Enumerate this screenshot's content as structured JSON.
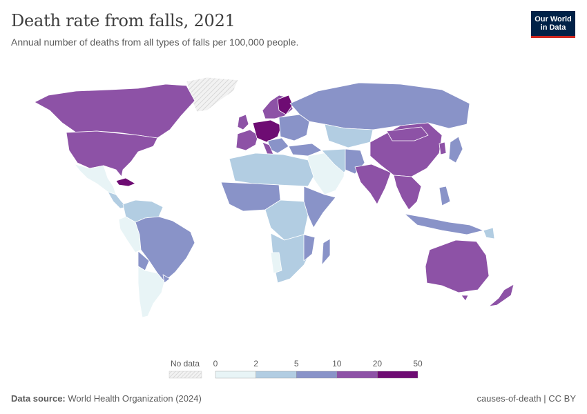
{
  "header": {
    "title": "Death rate from falls, 2021",
    "subtitle": "Annual number of deaths from all types of falls per 100,000 people.",
    "logo_line1": "Our World",
    "logo_line2": "in Data"
  },
  "legend": {
    "no_data_label": "No data",
    "ticks": [
      "0",
      "2",
      "5",
      "10",
      "20",
      "50"
    ],
    "colors": [
      "#e8f4f6",
      "#b2cde2",
      "#8993c8",
      "#8d52a6",
      "#6e0c73"
    ],
    "no_data_color": "#e8e8e8"
  },
  "map_colors": {
    "ocean": "#ffffff",
    "border": "#ffffff",
    "scale": [
      "#e8f4f6",
      "#b2cde2",
      "#8993c8",
      "#8d52a6",
      "#6e0c73"
    ]
  },
  "footer": {
    "source_label": "Data source:",
    "source_value": "World Health Organization (2024)",
    "credit": "causes-of-death | CC BY"
  }
}
